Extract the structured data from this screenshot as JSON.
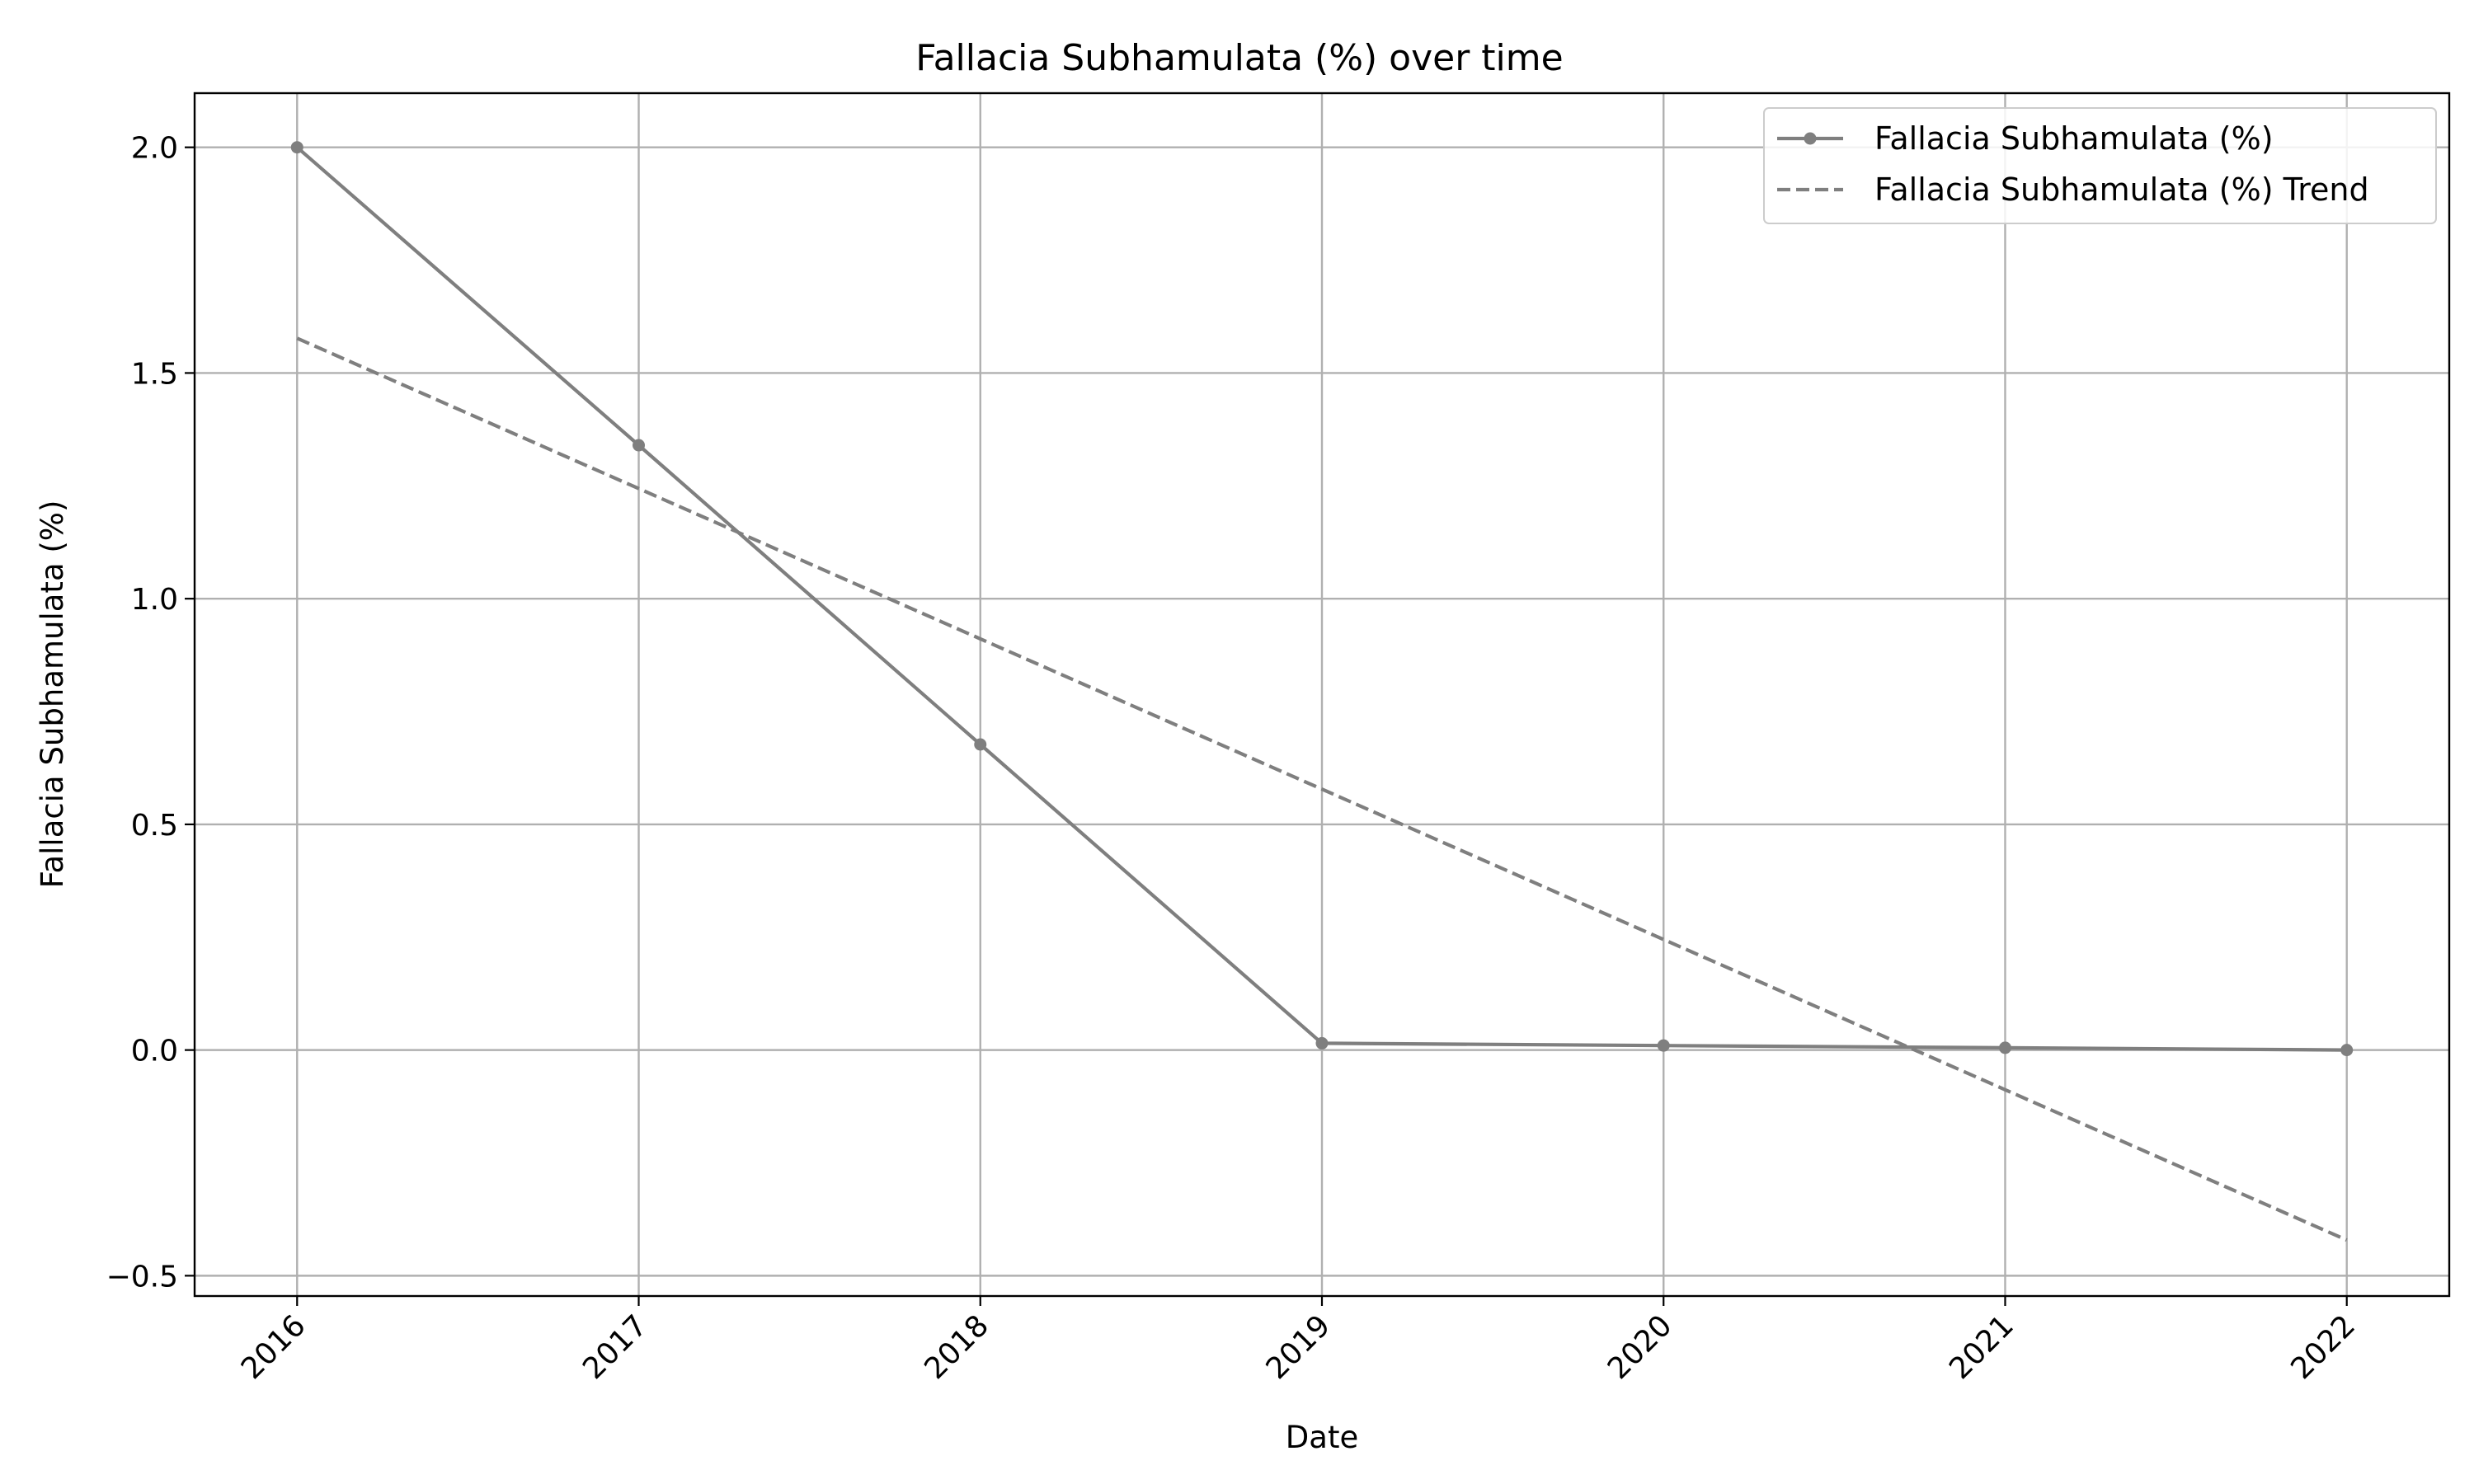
{
  "chart_data": {
    "type": "line",
    "title": "Fallacia Subhamulata (%) over time",
    "xlabel": "Date",
    "ylabel": "Fallacia Subhamulata (%)",
    "x": [
      "2016",
      "2017",
      "2018",
      "2019",
      "2020",
      "2021",
      "2022"
    ],
    "x_tick_labels": [
      "2016",
      "2017",
      "2018",
      "2019",
      "2020",
      "2021",
      "2022"
    ],
    "y_ticks": [
      -0.5,
      0.0,
      0.5,
      1.0,
      1.5,
      2.0
    ],
    "y_tick_labels": [
      "−0.5",
      "0.0",
      "0.5",
      "1.0",
      "1.5",
      "2.0"
    ],
    "ylim": [
      -0.545,
      2.12
    ],
    "xlim": [
      2015.7,
      2022.3
    ],
    "grid": true,
    "legend_position": "top-right",
    "series": [
      {
        "name": "Fallacia Subhamulata (%)",
        "style": "solid-with-markers",
        "color": "#7f7f7f",
        "values": [
          2.0,
          1.34,
          0.677,
          0.015,
          0.01,
          0.005,
          0.0
        ]
      },
      {
        "name": "Fallacia Subhamulata (%) Trend",
        "style": "dashed",
        "color": "#7f7f7f",
        "values": [
          1.577,
          1.244,
          0.911,
          0.578,
          0.245,
          -0.088,
          -0.421
        ]
      }
    ]
  }
}
